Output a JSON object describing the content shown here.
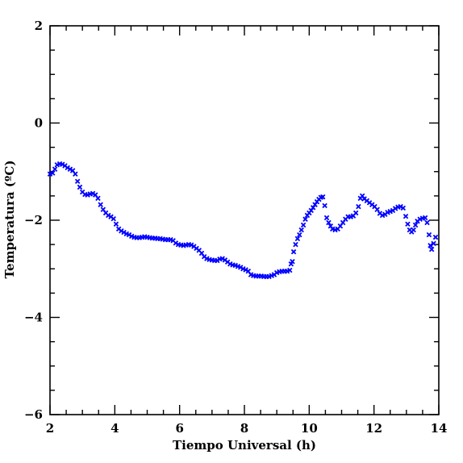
{
  "chart_data": {
    "type": "scatter",
    "title": "",
    "xlabel": "Tiempo Universal (h)",
    "ylabel": "Temperatura (ºC)",
    "xlim": [
      2,
      14
    ],
    "ylim": [
      -6,
      2
    ],
    "xticks": [
      "2",
      "4",
      "6",
      "8",
      "10",
      "12",
      "14"
    ],
    "yticks": [
      "2",
      "0",
      "−2",
      "−4",
      "−6"
    ],
    "grid": false,
    "legend": "none",
    "marker": "x",
    "color": "#0000ff",
    "series": [
      {
        "points": [
          [
            2.0,
            -1.05
          ],
          [
            2.08,
            -1.03
          ],
          [
            2.15,
            -0.95
          ],
          [
            2.22,
            -0.86
          ],
          [
            2.3,
            -0.84
          ],
          [
            2.38,
            -0.85
          ],
          [
            2.46,
            -0.88
          ],
          [
            2.54,
            -0.92
          ],
          [
            2.62,
            -0.95
          ],
          [
            2.7,
            -0.98
          ],
          [
            2.78,
            -1.05
          ],
          [
            2.85,
            -1.2
          ],
          [
            2.92,
            -1.32
          ],
          [
            3.0,
            -1.42
          ],
          [
            3.08,
            -1.47
          ],
          [
            3.16,
            -1.48
          ],
          [
            3.24,
            -1.46
          ],
          [
            3.32,
            -1.45
          ],
          [
            3.4,
            -1.48
          ],
          [
            3.48,
            -1.55
          ],
          [
            3.56,
            -1.68
          ],
          [
            3.64,
            -1.78
          ],
          [
            3.72,
            -1.85
          ],
          [
            3.8,
            -1.9
          ],
          [
            3.88,
            -1.93
          ],
          [
            3.96,
            -1.97
          ],
          [
            4.04,
            -2.08
          ],
          [
            4.12,
            -2.18
          ],
          [
            4.2,
            -2.22
          ],
          [
            4.28,
            -2.25
          ],
          [
            4.36,
            -2.28
          ],
          [
            4.44,
            -2.3
          ],
          [
            4.52,
            -2.33
          ],
          [
            4.6,
            -2.35
          ],
          [
            4.68,
            -2.36
          ],
          [
            4.76,
            -2.36
          ],
          [
            4.84,
            -2.35
          ],
          [
            4.92,
            -2.34
          ],
          [
            5.0,
            -2.35
          ],
          [
            5.08,
            -2.36
          ],
          [
            5.16,
            -2.37
          ],
          [
            5.24,
            -2.37
          ],
          [
            5.32,
            -2.38
          ],
          [
            5.4,
            -2.38
          ],
          [
            5.48,
            -2.39
          ],
          [
            5.56,
            -2.4
          ],
          [
            5.64,
            -2.4
          ],
          [
            5.72,
            -2.4
          ],
          [
            5.8,
            -2.42
          ],
          [
            5.88,
            -2.47
          ],
          [
            5.96,
            -2.5
          ],
          [
            6.04,
            -2.51
          ],
          [
            6.12,
            -2.52
          ],
          [
            6.2,
            -2.51
          ],
          [
            6.28,
            -2.5
          ],
          [
            6.36,
            -2.51
          ],
          [
            6.44,
            -2.54
          ],
          [
            6.52,
            -2.58
          ],
          [
            6.6,
            -2.62
          ],
          [
            6.68,
            -2.68
          ],
          [
            6.76,
            -2.75
          ],
          [
            6.84,
            -2.79
          ],
          [
            6.92,
            -2.81
          ],
          [
            7.0,
            -2.82
          ],
          [
            7.08,
            -2.83
          ],
          [
            7.16,
            -2.83
          ],
          [
            7.24,
            -2.8
          ],
          [
            7.32,
            -2.79
          ],
          [
            7.4,
            -2.82
          ],
          [
            7.48,
            -2.86
          ],
          [
            7.56,
            -2.9
          ],
          [
            7.64,
            -2.92
          ],
          [
            7.72,
            -2.93
          ],
          [
            7.8,
            -2.95
          ],
          [
            7.88,
            -2.97
          ],
          [
            7.96,
            -3.0
          ],
          [
            8.04,
            -3.02
          ],
          [
            8.12,
            -3.05
          ],
          [
            8.2,
            -3.12
          ],
          [
            8.28,
            -3.14
          ],
          [
            8.36,
            -3.15
          ],
          [
            8.44,
            -3.15
          ],
          [
            8.52,
            -3.15
          ],
          [
            8.6,
            -3.16
          ],
          [
            8.68,
            -3.16
          ],
          [
            8.76,
            -3.16
          ],
          [
            8.84,
            -3.14
          ],
          [
            8.92,
            -3.12
          ],
          [
            9.0,
            -3.08
          ],
          [
            9.08,
            -3.06
          ],
          [
            9.16,
            -3.05
          ],
          [
            9.24,
            -3.05
          ],
          [
            9.32,
            -3.05
          ],
          [
            9.4,
            -3.03
          ],
          [
            9.44,
            -2.9
          ],
          [
            9.48,
            -2.85
          ],
          [
            9.52,
            -2.65
          ],
          [
            9.58,
            -2.5
          ],
          [
            9.64,
            -2.38
          ],
          [
            9.7,
            -2.3
          ],
          [
            9.76,
            -2.2
          ],
          [
            9.82,
            -2.1
          ],
          [
            9.88,
            -1.98
          ],
          [
            9.94,
            -1.9
          ],
          [
            10.0,
            -1.85
          ],
          [
            10.06,
            -1.8
          ],
          [
            10.12,
            -1.74
          ],
          [
            10.18,
            -1.68
          ],
          [
            10.24,
            -1.62
          ],
          [
            10.3,
            -1.57
          ],
          [
            10.36,
            -1.53
          ],
          [
            10.42,
            -1.52
          ],
          [
            10.48,
            -1.7
          ],
          [
            10.54,
            -1.95
          ],
          [
            10.6,
            -2.05
          ],
          [
            10.66,
            -2.12
          ],
          [
            10.72,
            -2.18
          ],
          [
            10.8,
            -2.2
          ],
          [
            10.88,
            -2.18
          ],
          [
            10.96,
            -2.12
          ],
          [
            11.04,
            -2.05
          ],
          [
            11.12,
            -1.98
          ],
          [
            11.2,
            -1.93
          ],
          [
            11.28,
            -1.93
          ],
          [
            11.36,
            -1.91
          ],
          [
            11.44,
            -1.85
          ],
          [
            11.52,
            -1.72
          ],
          [
            11.58,
            -1.55
          ],
          [
            11.64,
            -1.5
          ],
          [
            11.7,
            -1.56
          ],
          [
            11.78,
            -1.6
          ],
          [
            11.86,
            -1.64
          ],
          [
            11.94,
            -1.68
          ],
          [
            12.02,
            -1.72
          ],
          [
            12.1,
            -1.78
          ],
          [
            12.18,
            -1.86
          ],
          [
            12.26,
            -1.9
          ],
          [
            12.34,
            -1.88
          ],
          [
            12.42,
            -1.84
          ],
          [
            12.5,
            -1.82
          ],
          [
            12.58,
            -1.8
          ],
          [
            12.66,
            -1.76
          ],
          [
            12.74,
            -1.73
          ],
          [
            12.82,
            -1.72
          ],
          [
            12.9,
            -1.75
          ],
          [
            12.98,
            -1.92
          ],
          [
            13.04,
            -2.08
          ],
          [
            13.1,
            -2.2
          ],
          [
            13.16,
            -2.24
          ],
          [
            13.22,
            -2.2
          ],
          [
            13.28,
            -2.1
          ],
          [
            13.34,
            -2.02
          ],
          [
            13.42,
            -1.98
          ],
          [
            13.5,
            -1.96
          ],
          [
            13.58,
            -1.95
          ],
          [
            13.64,
            -2.05
          ],
          [
            13.7,
            -2.3
          ],
          [
            13.74,
            -2.52
          ],
          [
            13.78,
            -2.6
          ],
          [
            13.84,
            -2.48
          ],
          [
            13.9,
            -2.35
          ]
        ]
      }
    ]
  }
}
